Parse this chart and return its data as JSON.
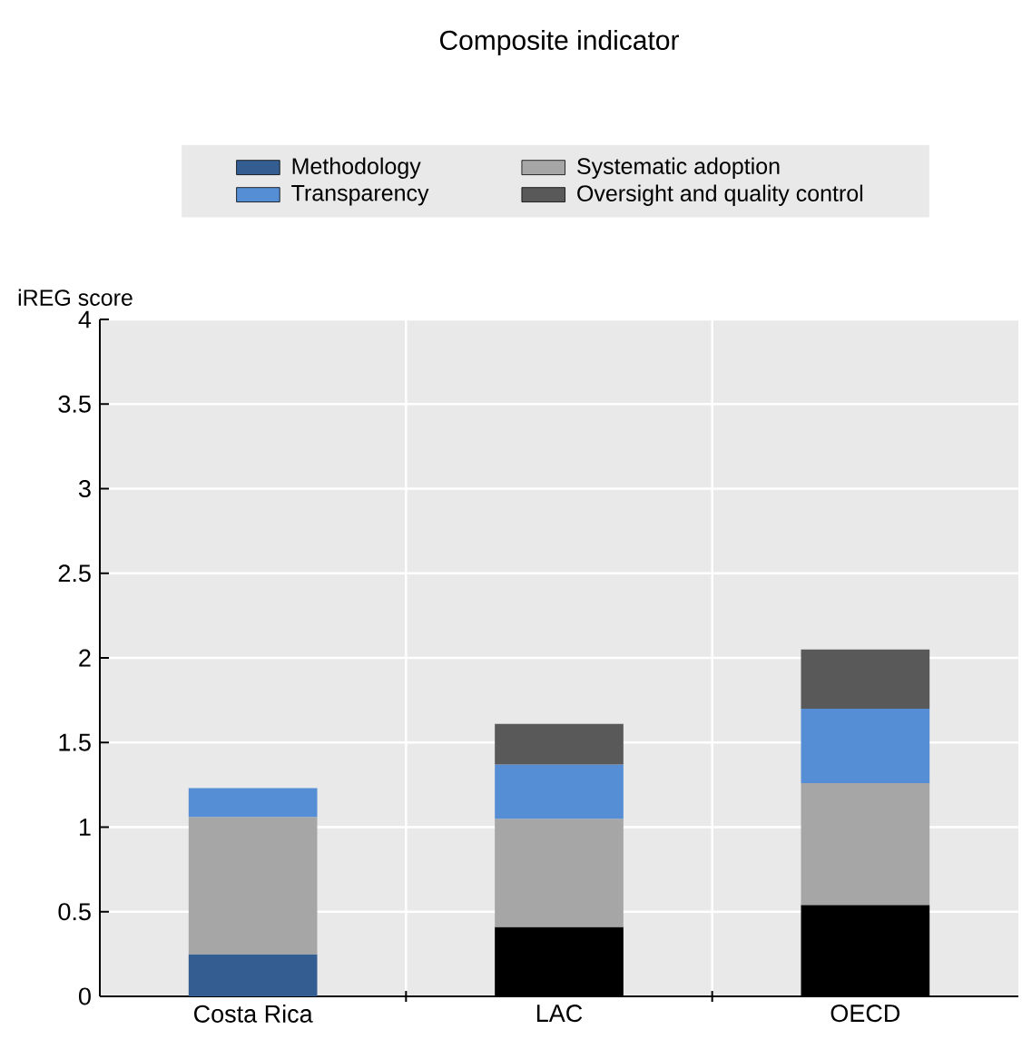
{
  "chart_data": {
    "type": "bar",
    "stacked": true,
    "title": "Composite indicator",
    "ylabel": "iREG score",
    "categories": [
      "Costa Rica",
      "LAC",
      "OECD"
    ],
    "series": [
      {
        "name": "Methodology",
        "color": "#345e91",
        "colors": [
          "#345e91",
          "#000000",
          "#000000"
        ],
        "values": [
          0.25,
          0.41,
          0.54
        ]
      },
      {
        "name": "Systematic adoption",
        "color": "#a6a6a6",
        "values": [
          0.81,
          0.64,
          0.72
        ]
      },
      {
        "name": "Transparency",
        "color": "#558ed5",
        "values": [
          0.17,
          0.32,
          0.44
        ]
      },
      {
        "name": "Oversight and quality control",
        "color": "#595959",
        "values": [
          0,
          0.24,
          0.35
        ]
      }
    ],
    "ylim": [
      0,
      4
    ],
    "yticks": [
      0,
      0.5,
      1,
      1.5,
      2,
      2.5,
      3,
      3.5,
      4
    ],
    "grid": true,
    "legend": "top"
  }
}
